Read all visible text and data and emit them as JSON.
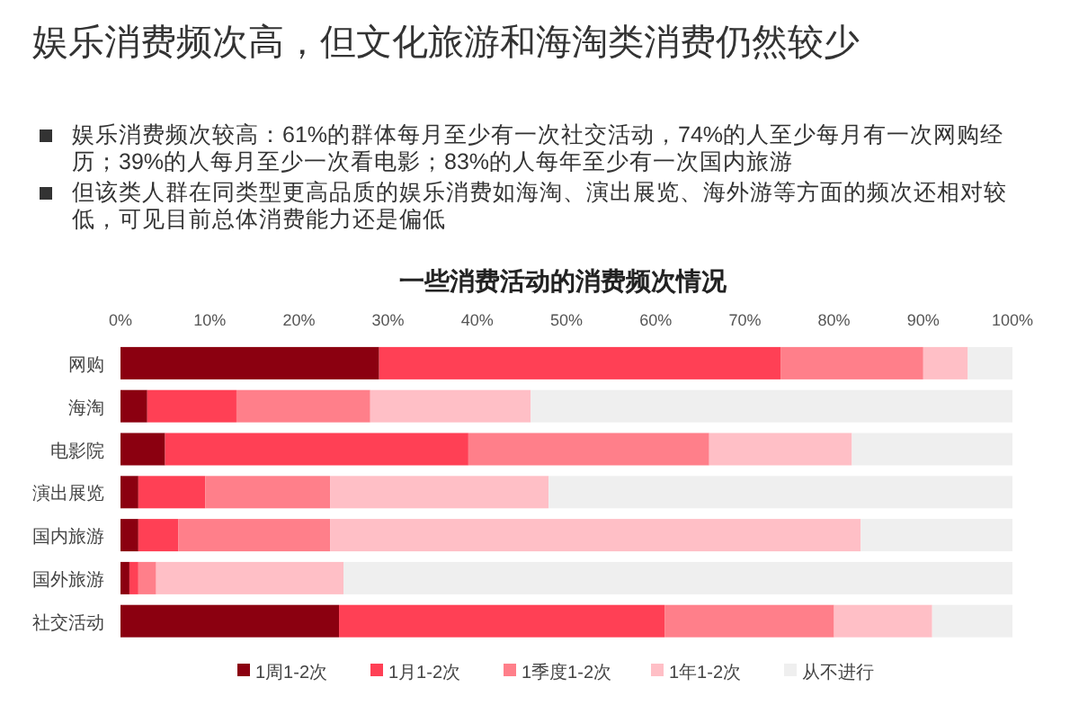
{
  "chart_data": {
    "type": "bar",
    "orientation": "horizontal",
    "stacked": true,
    "title": "娱乐消费频次高，但文化旅游和海淘类消费仍然较少",
    "subtitle": "一些消费活动的消费频次情况",
    "annotations": [
      "娱乐消费频次较高：61%的群体每月至少有一次社交活动，74%的人至少每月有一次网购经历；39%的人每月至少一次看电影；83%的人每年至少有一次国内旅游",
      "但该类人群在同类型更高品质的娱乐消费如海淘、演出展览、海外游等方面的频次还相对较低，可见目前总体消费能力还是偏低"
    ],
    "categories": [
      "网购",
      "海淘",
      "电影院",
      "演出展览",
      "国内旅游",
      "国外旅游",
      "社交活动"
    ],
    "series": [
      {
        "name": "1周1-2次",
        "color": "#8b0010",
        "values": [
          29,
          3,
          5,
          2,
          2,
          1,
          24.5
        ]
      },
      {
        "name": "1月1-2次",
        "color": "#ff4055",
        "values": [
          45,
          10,
          34,
          7.5,
          4.5,
          1,
          36.5
        ]
      },
      {
        "name": "1季度1-2次",
        "color": "#ff7f8a",
        "values": [
          16,
          15,
          27,
          14,
          17,
          2,
          19
        ]
      },
      {
        "name": "1年1-2次",
        "color": "#ffbfc6",
        "values": [
          5,
          18,
          16,
          24.5,
          59.5,
          21,
          11
        ]
      },
      {
        "name": "从不进行",
        "color": "#efefef",
        "values": [
          5,
          54,
          18,
          52,
          17,
          75,
          9
        ]
      }
    ],
    "xlim": [
      0,
      100
    ],
    "xticks": [
      {
        "value": 0,
        "label": "0%"
      },
      {
        "value": 10,
        "label": "10%"
      },
      {
        "value": 20,
        "label": "20%"
      },
      {
        "value": 30,
        "label": "30%"
      },
      {
        "value": 40,
        "label": "40%"
      },
      {
        "value": 50,
        "label": "50%"
      },
      {
        "value": 60,
        "label": "60%"
      },
      {
        "value": 70,
        "label": "70%"
      },
      {
        "value": 80,
        "label": "80%"
      },
      {
        "value": 90,
        "label": "90%"
      },
      {
        "value": 100,
        "label": "100%"
      }
    ],
    "grid": false,
    "legend": "bottom"
  }
}
